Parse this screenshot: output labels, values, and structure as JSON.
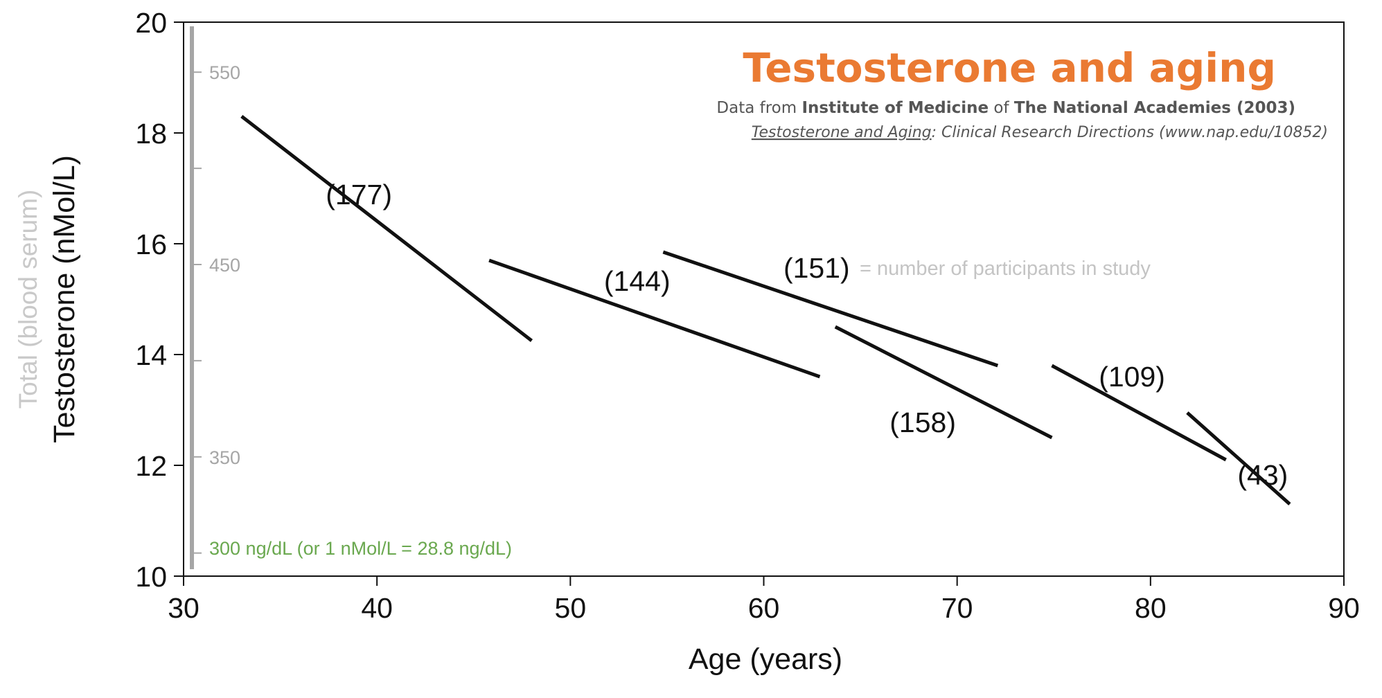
{
  "chart_data": {
    "type": "line",
    "title": "Testosterone and aging",
    "subtitle": {
      "p1": "Data from ",
      "p2": "Institute of Medicine",
      "p3": " of ",
      "p4": "The National Academies (2003)"
    },
    "source": {
      "p1": "Testosterone and Aging",
      "p2": ": Clinical Research Directions (www.nap.edu/10852)"
    },
    "xlabel": "Age (years)",
    "ylabel": "Testosterone (nMol/L)",
    "ylabel_secondary": "Total (blood serum)",
    "xlim": [
      30,
      90
    ],
    "ylim": [
      10,
      20
    ],
    "x_ticks": [
      "30",
      "40",
      "50",
      "60",
      "70",
      "80",
      "90"
    ],
    "y_ticks": [
      "10",
      "12",
      "14",
      "16",
      "18",
      "20"
    ],
    "secondary_axis": {
      "unit_note": "300 ng/dL (or 1 nMol/L = 28.8 ng/dL)",
      "labels": [
        {
          "text": "550",
          "value": 550
        },
        {
          "text": "450",
          "value": 450
        },
        {
          "text": "350",
          "value": 350
        }
      ],
      "tick_values": [
        300,
        350,
        400,
        450,
        500,
        550
      ],
      "conversion": 28.8
    },
    "legend_note": "= number of participants in study",
    "series": [
      {
        "label": "(177)",
        "x": [
          33,
          48
        ],
        "y": [
          18.3,
          14.25
        ]
      },
      {
        "label": "(144)",
        "x": [
          45.8,
          62.9
        ],
        "y": [
          15.7,
          13.6
        ]
      },
      {
        "label": "(151)",
        "x": [
          54.8,
          72.1
        ],
        "y": [
          15.85,
          13.8
        ]
      },
      {
        "label": "(158)",
        "x": [
          63.7,
          74.9
        ],
        "y": [
          14.5,
          12.5
        ]
      },
      {
        "label": "(109)",
        "x": [
          74.9,
          83.9
        ],
        "y": [
          13.8,
          12.1
        ]
      },
      {
        "label": "(43)",
        "x": [
          81.9,
          87.2
        ],
        "y": [
          12.95,
          11.3
        ]
      }
    ]
  }
}
